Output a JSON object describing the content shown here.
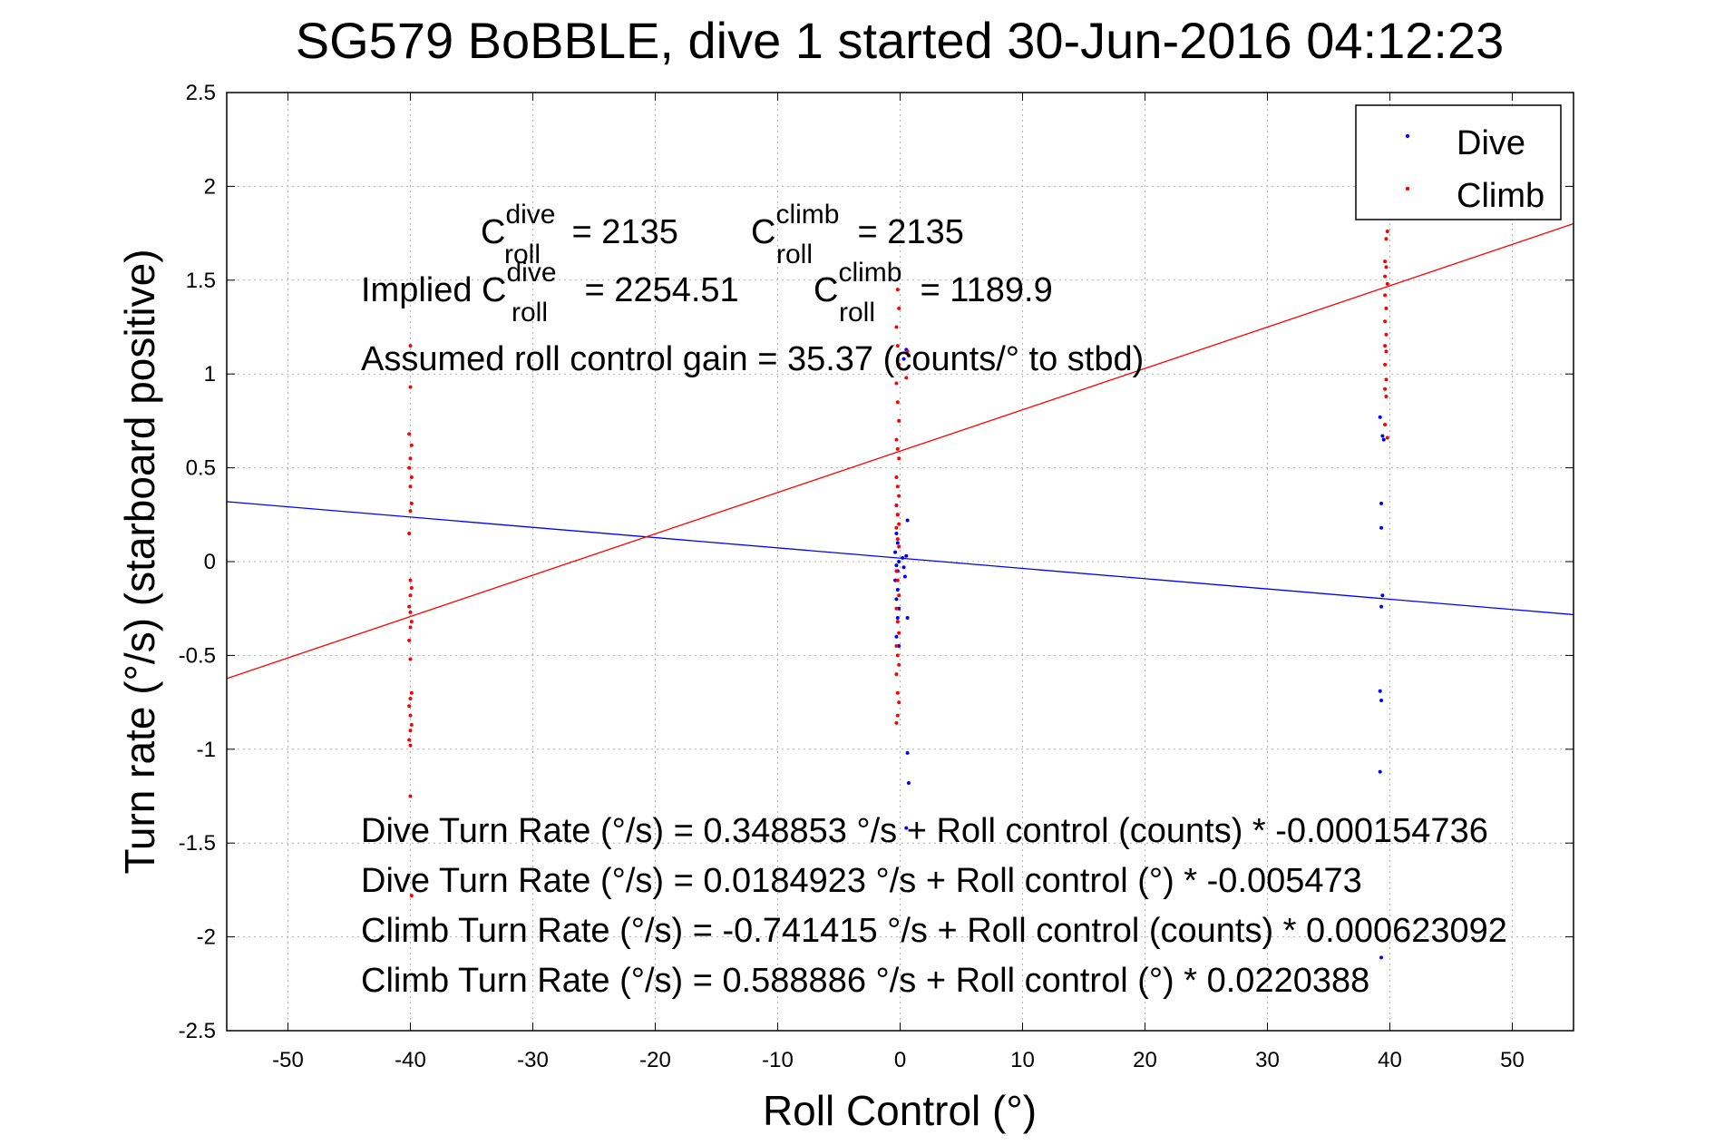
{
  "chart_data": {
    "type": "scatter",
    "title": "SG579 BoBBLE, dive 1 started 30-Jun-2016 04:12:23",
    "xlabel": "Roll Control (°)",
    "ylabel": "Turn rate (°/s)  (starboard positive)",
    "xlim": [
      -55,
      55
    ],
    "ylim": [
      -2.5,
      2.5
    ],
    "xticks": [
      "-50",
      "-40",
      "-30",
      "-20",
      "-10",
      "0",
      "10",
      "20",
      "30",
      "40",
      "50"
    ],
    "yticks": [
      "-2.5",
      "-2",
      "-1.5",
      "-1",
      "-0.5",
      "0",
      "0.5",
      "1",
      "1.5",
      "2",
      "2.5"
    ],
    "grid": true,
    "legend_position": "top-right",
    "legend": [
      "Dive",
      "Climb"
    ],
    "colors": {
      "dive": "#0000ff",
      "climb": "#ff0000"
    },
    "series": [
      {
        "name": "Dive",
        "color": "#0000ff",
        "points": [
          [
            -0.3,
            0.15
          ],
          [
            -0.2,
            0.1
          ],
          [
            -0.4,
            0.05
          ],
          [
            -0.1,
            0.0
          ],
          [
            -0.3,
            -0.02
          ],
          [
            -0.2,
            -0.05
          ],
          [
            -0.4,
            -0.1
          ],
          [
            -0.2,
            -0.15
          ],
          [
            -0.3,
            -0.2
          ],
          [
            -0.1,
            -0.25
          ],
          [
            -0.2,
            -0.3
          ],
          [
            -0.3,
            -0.4
          ],
          [
            -0.1,
            -0.45
          ],
          [
            -0.2,
            0.25
          ],
          [
            -0.3,
            0.3
          ],
          [
            0.2,
            0.02
          ],
          [
            0.3,
            -0.03
          ],
          [
            0.6,
            0.22
          ],
          [
            0.5,
            0.03
          ],
          [
            0.4,
            -0.08
          ],
          [
            0.6,
            -0.3
          ],
          [
            0.6,
            -1.02
          ],
          [
            0.7,
            -1.18
          ],
          [
            0.5,
            -1.42
          ],
          [
            0.7,
            1.1
          ],
          [
            0.5,
            1.13
          ],
          [
            0.3,
            1.08
          ],
          [
            39.2,
            0.77
          ],
          [
            39.4,
            0.67
          ],
          [
            39.5,
            0.65
          ],
          [
            39.3,
            0.31
          ],
          [
            39.3,
            0.18
          ],
          [
            39.4,
            -0.18
          ],
          [
            39.3,
            -0.24
          ],
          [
            39.2,
            -0.69
          ],
          [
            39.3,
            -0.74
          ],
          [
            39.2,
            -1.12
          ],
          [
            39.3,
            -2.11
          ]
        ]
      },
      {
        "name": "Climb",
        "color": "#ff0000",
        "points": [
          [
            -40,
            1.15
          ],
          [
            -40,
            0.93
          ],
          [
            -40.1,
            0.68
          ],
          [
            -39.9,
            0.62
          ],
          [
            -40,
            0.55
          ],
          [
            -40.1,
            0.5
          ],
          [
            -39.9,
            0.45
          ],
          [
            -40,
            0.4
          ],
          [
            -39.9,
            0.31
          ],
          [
            -40,
            0.27
          ],
          [
            -40.1,
            0.15
          ],
          [
            -40,
            -0.1
          ],
          [
            -39.9,
            -0.14
          ],
          [
            -40,
            -0.18
          ],
          [
            -40.1,
            -0.24
          ],
          [
            -40,
            -0.27
          ],
          [
            -39.9,
            -0.32
          ],
          [
            -40,
            -0.35
          ],
          [
            -40.1,
            -0.42
          ],
          [
            -40,
            -0.52
          ],
          [
            -39.9,
            -0.7
          ],
          [
            -40,
            -0.73
          ],
          [
            -40.1,
            -0.77
          ],
          [
            -40,
            -0.82
          ],
          [
            -39.9,
            -0.87
          ],
          [
            -40,
            -0.9
          ],
          [
            -40.1,
            -0.95
          ],
          [
            -40,
            -0.98
          ],
          [
            -40,
            -1.25
          ],
          [
            -39.9,
            -1.78
          ],
          [
            -0.2,
            1.45
          ],
          [
            -0.1,
            1.35
          ],
          [
            -0.3,
            1.25
          ],
          [
            -0.2,
            1.15
          ],
          [
            -0.1,
            1.05
          ],
          [
            -0.3,
            0.95
          ],
          [
            -0.2,
            0.85
          ],
          [
            -0.1,
            0.75
          ],
          [
            -0.3,
            0.65
          ],
          [
            -0.2,
            0.6
          ],
          [
            -0.1,
            0.55
          ],
          [
            -0.3,
            0.45
          ],
          [
            -0.2,
            0.4
          ],
          [
            -0.1,
            0.35
          ],
          [
            -0.3,
            0.3
          ],
          [
            -0.2,
            0.25
          ],
          [
            -0.1,
            0.2
          ],
          [
            -0.3,
            0.18
          ],
          [
            -0.2,
            0.12
          ],
          [
            -0.1,
            0.08
          ],
          [
            -0.3,
            -0.05
          ],
          [
            -0.2,
            -0.1
          ],
          [
            -0.1,
            -0.18
          ],
          [
            -0.3,
            -0.25
          ],
          [
            -0.2,
            -0.32
          ],
          [
            -0.1,
            -0.38
          ],
          [
            -0.3,
            -0.45
          ],
          [
            -0.2,
            -0.5
          ],
          [
            -0.1,
            -0.55
          ],
          [
            -0.3,
            -0.6
          ],
          [
            -0.2,
            -0.7
          ],
          [
            -0.1,
            -0.75
          ],
          [
            -0.2,
            -0.82
          ],
          [
            -0.3,
            -0.86
          ],
          [
            0.5,
            0.98
          ],
          [
            0.7,
            1.1
          ],
          [
            0.6,
            1.12
          ],
          [
            39.8,
            1.76
          ],
          [
            39.7,
            1.72
          ],
          [
            39.6,
            1.6
          ],
          [
            39.7,
            1.57
          ],
          [
            39.6,
            1.52
          ],
          [
            39.8,
            1.48
          ],
          [
            39.6,
            1.42
          ],
          [
            39.7,
            1.35
          ],
          [
            39.6,
            1.28
          ],
          [
            39.7,
            1.21
          ],
          [
            39.6,
            1.15
          ],
          [
            39.7,
            1.12
          ],
          [
            39.6,
            1.05
          ],
          [
            39.7,
            0.97
          ],
          [
            39.6,
            0.92
          ],
          [
            39.7,
            0.88
          ],
          [
            39.6,
            0.73
          ],
          [
            39.8,
            0.66
          ]
        ]
      }
    ],
    "fit_lines": [
      {
        "series": "Dive",
        "intercept": 0.0184923,
        "slope": -0.005473,
        "color": "#0000ff"
      },
      {
        "series": "Climb",
        "intercept": 0.588886,
        "slope": 0.0220388,
        "color": "#ff0000"
      }
    ],
    "annotations": {
      "coef_dive_label": "C",
      "coef_dive_sup": "dive",
      "coef_dive_sub": "roll",
      "coef_dive_value": " = 2135",
      "coef_climb_label": "C",
      "coef_climb_sup": "climb",
      "coef_climb_sub": "roll",
      "coef_climb_value": " = 2135",
      "implied_prefix": "Implied C",
      "implied_dive_sup": "dive",
      "implied_dive_sub": "roll",
      "implied_dive_value": " = 2254.51",
      "implied_climb_label": "C",
      "implied_climb_sup": "climb",
      "implied_climb_sub": "roll",
      "implied_climb_value": " = 1189.9",
      "gain": "Assumed roll control gain = 35.37 (counts/° to stbd)",
      "eq1": "Dive Turn Rate (°/s) = 0.348853 °/s + Roll control (counts) * -0.000154736",
      "eq2": "Dive Turn Rate (°/s) = 0.0184923 °/s + Roll control (°) * -0.005473",
      "eq3": "Climb Turn Rate (°/s) = -0.741415 °/s + Roll control (counts) * 0.000623092",
      "eq4": "Climb Turn Rate (°/s) = 0.588886 °/s + Roll control (°) * 0.0220388"
    }
  }
}
